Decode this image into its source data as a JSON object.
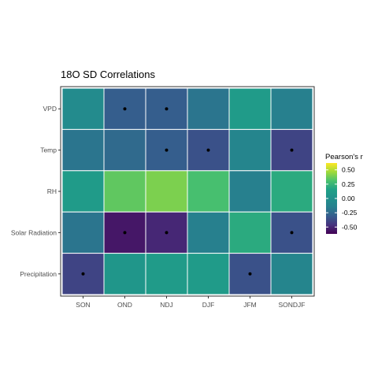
{
  "chart_data": {
    "type": "heatmap",
    "title": "18O SD Correlations",
    "x_categories": [
      "SON",
      "OND",
      "NDJ",
      "DJF",
      "JFM",
      "SONDJF"
    ],
    "y_categories": [
      "VPD",
      "Temp",
      "RH",
      "Solar Radiation",
      "Precipitation"
    ],
    "values": [
      [
        -0.05,
        -0.3,
        -0.3,
        -0.2,
        0.1,
        -0.15
      ],
      [
        -0.2,
        -0.25,
        -0.3,
        -0.35,
        -0.1,
        -0.4
      ],
      [
        0.1,
        0.35,
        0.4,
        0.3,
        -0.15,
        0.2
      ],
      [
        -0.2,
        -0.55,
        -0.5,
        -0.15,
        0.2,
        -0.35
      ],
      [
        -0.4,
        0.05,
        0.1,
        0.1,
        -0.35,
        -0.1
      ]
    ],
    "significant": [
      [
        false,
        true,
        true,
        false,
        false,
        false
      ],
      [
        false,
        false,
        true,
        true,
        false,
        true
      ],
      [
        false,
        false,
        false,
        false,
        false,
        false
      ],
      [
        false,
        true,
        true,
        false,
        false,
        true
      ],
      [
        true,
        false,
        false,
        false,
        true,
        false
      ]
    ],
    "legend": {
      "title": "Pearson's r",
      "ticks": [
        "0.50",
        "0.25",
        "0.00",
        "-0.25",
        "-0.50"
      ],
      "tick_values": [
        0.5,
        0.25,
        0.0,
        -0.25,
        -0.5
      ],
      "range": [
        -0.62,
        0.62
      ],
      "placement": "right"
    },
    "colormap": "viridis"
  }
}
